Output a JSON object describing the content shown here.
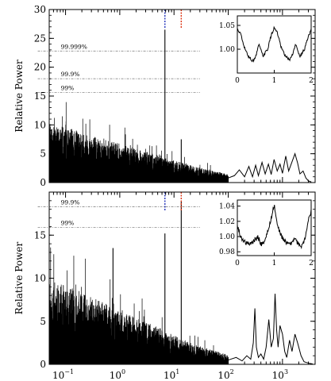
{
  "chart_data": [
    {
      "type": "line",
      "panel": "top",
      "xscale": "log",
      "xlim": [
        0.05,
        4000
      ],
      "ylim": [
        0,
        30
      ],
      "ylabel": "Relative Power",
      "yticks": [
        0,
        5,
        10,
        15,
        20,
        25,
        30
      ],
      "peaks": [
        {
          "x": 6.8,
          "y": 26.5
        },
        {
          "x": 13.6,
          "y": 7.5
        }
      ],
      "significance_levels": [
        {
          "label": "99.999%",
          "y": 22.8
        },
        {
          "label": "99.9%",
          "y": 18.0
        },
        {
          "label": "99%",
          "y": 15.6
        }
      ],
      "marker_lines": [
        {
          "x": 6.8,
          "color": "#2233bb"
        },
        {
          "x": 13.6,
          "color": "#dd3311"
        }
      ],
      "envelope": {
        "x": [
          0.05,
          0.1,
          0.2,
          0.5,
          1,
          2,
          5,
          10,
          20,
          50,
          100
        ],
        "y": [
          8.5,
          8.0,
          7.3,
          6.4,
          5.6,
          4.9,
          4.0,
          3.2,
          2.5,
          1.8,
          1.2
        ]
      },
      "tail": {
        "x": [
          100,
          130,
          160,
          200,
          240,
          280,
          320,
          360,
          420,
          480,
          550,
          620,
          700,
          800,
          900,
          1000,
          1150,
          1300,
          1500,
          1700,
          1900,
          2100,
          2400,
          2700,
          3000,
          3400
        ],
        "y": [
          0.8,
          1.2,
          2.2,
          1.0,
          2.8,
          1.0,
          3.0,
          1.2,
          3.5,
          1.5,
          3.2,
          1.4,
          4.0,
          2.0,
          3.2,
          1.6,
          4.6,
          2.0,
          3.6,
          5.0,
          3.4,
          1.5,
          2.0,
          0.8,
          0.3,
          0.1
        ]
      },
      "inset": {
        "xlim": [
          0,
          2
        ],
        "ylim": [
          0.95,
          1.07
        ],
        "xticks": [
          0,
          1,
          2
        ],
        "yticks": [
          {
            "value": 1.0,
            "label": "1.00"
          },
          {
            "value": 1.05,
            "label": "1.05"
          }
        ],
        "curve": {
          "x": [
            0,
            0.08,
            0.18,
            0.3,
            0.42,
            0.5,
            0.58,
            0.7,
            0.82,
            0.92,
            1.0,
            1.08,
            1.18,
            1.3,
            1.42,
            1.5,
            1.58,
            1.7,
            1.82,
            1.92,
            2.0
          ],
          "y": [
            1.04,
            1.035,
            1.005,
            0.985,
            0.975,
            0.985,
            1.01,
            0.985,
            1.0,
            1.03,
            1.045,
            1.035,
            1.005,
            0.985,
            0.978,
            0.99,
            1.01,
            0.985,
            1.0,
            1.025,
            1.04
          ]
        }
      }
    },
    {
      "type": "line",
      "panel": "bottom",
      "xscale": "log",
      "xlim": [
        0.05,
        4000
      ],
      "ylim": [
        0,
        20
      ],
      "ylabel": "Relative Power",
      "yticks": [
        0,
        5,
        10,
        15
      ],
      "xticks": [
        {
          "value": 0.1,
          "base": "10",
          "exp": "−1"
        },
        {
          "value": 1,
          "base": "10",
          "exp": "0"
        },
        {
          "value": 10,
          "base": "10",
          "exp": "1"
        },
        {
          "value": 100,
          "base": "10",
          "exp": "2"
        },
        {
          "value": 1000,
          "base": "10",
          "exp": "3"
        }
      ],
      "peaks": [
        {
          "x": 0.75,
          "y": 13.5
        },
        {
          "x": 6.8,
          "y": 15.2
        },
        {
          "x": 13.6,
          "y": 18.9
        }
      ],
      "significance_levels": [
        {
          "label": "99.9%",
          "y": 18.3
        },
        {
          "label": "99%",
          "y": 15.9
        }
      ],
      "marker_lines": [
        {
          "x": 6.8,
          "color": "#2233bb"
        },
        {
          "x": 13.6,
          "color": "#dd3311"
        }
      ],
      "envelope": {
        "x": [
          0.05,
          0.1,
          0.2,
          0.5,
          1,
          2,
          5,
          10,
          20,
          50,
          100
        ],
        "y": [
          8.2,
          7.6,
          7.0,
          6.0,
          5.2,
          4.5,
          3.6,
          2.8,
          2.1,
          1.4,
          0.9
        ]
      },
      "tail": {
        "x": [
          100,
          140,
          180,
          220,
          260,
          290,
          310,
          330,
          360,
          400,
          450,
          500,
          560,
          620,
          680,
          730,
          780,
          830,
          900,
          1000,
          1100,
          1200,
          1350,
          1500,
          1700,
          1900,
          2200,
          2500,
          2800,
          3200,
          3600
        ],
        "y": [
          0.5,
          0.8,
          0.4,
          1.0,
          0.6,
          2.5,
          6.5,
          2.0,
          0.8,
          1.2,
          0.6,
          2.0,
          5.2,
          2.0,
          3.0,
          8.2,
          4.0,
          2.0,
          4.5,
          3.5,
          1.5,
          0.8,
          2.8,
          1.5,
          3.5,
          2.5,
          1.0,
          0.3,
          0.2,
          0.1,
          0.05
        ]
      },
      "inset": {
        "xlim": [
          0,
          2
        ],
        "ylim": [
          0.975,
          1.048
        ],
        "xticks": [
          0,
          1,
          2
        ],
        "yticks": [
          {
            "value": 0.98,
            "label": "0.98"
          },
          {
            "value": 1.0,
            "label": "1.00"
          },
          {
            "value": 1.02,
            "label": "1.02"
          },
          {
            "value": 1.04,
            "label": "1.04"
          }
        ],
        "curve": {
          "x": [
            0,
            0.08,
            0.2,
            0.32,
            0.45,
            0.55,
            0.65,
            0.75,
            0.85,
            0.92,
            1.0,
            1.08,
            1.2,
            1.32,
            1.45,
            1.55,
            1.65,
            1.75,
            1.85,
            1.92,
            2.0
          ],
          "y": [
            1.015,
            1.0,
            0.993,
            0.99,
            0.994,
            1.0,
            0.99,
            0.995,
            1.01,
            1.025,
            1.042,
            1.015,
            1.0,
            0.992,
            0.99,
            0.998,
            0.99,
            0.988,
            1.0,
            1.02,
            1.035
          ]
        }
      }
    }
  ]
}
